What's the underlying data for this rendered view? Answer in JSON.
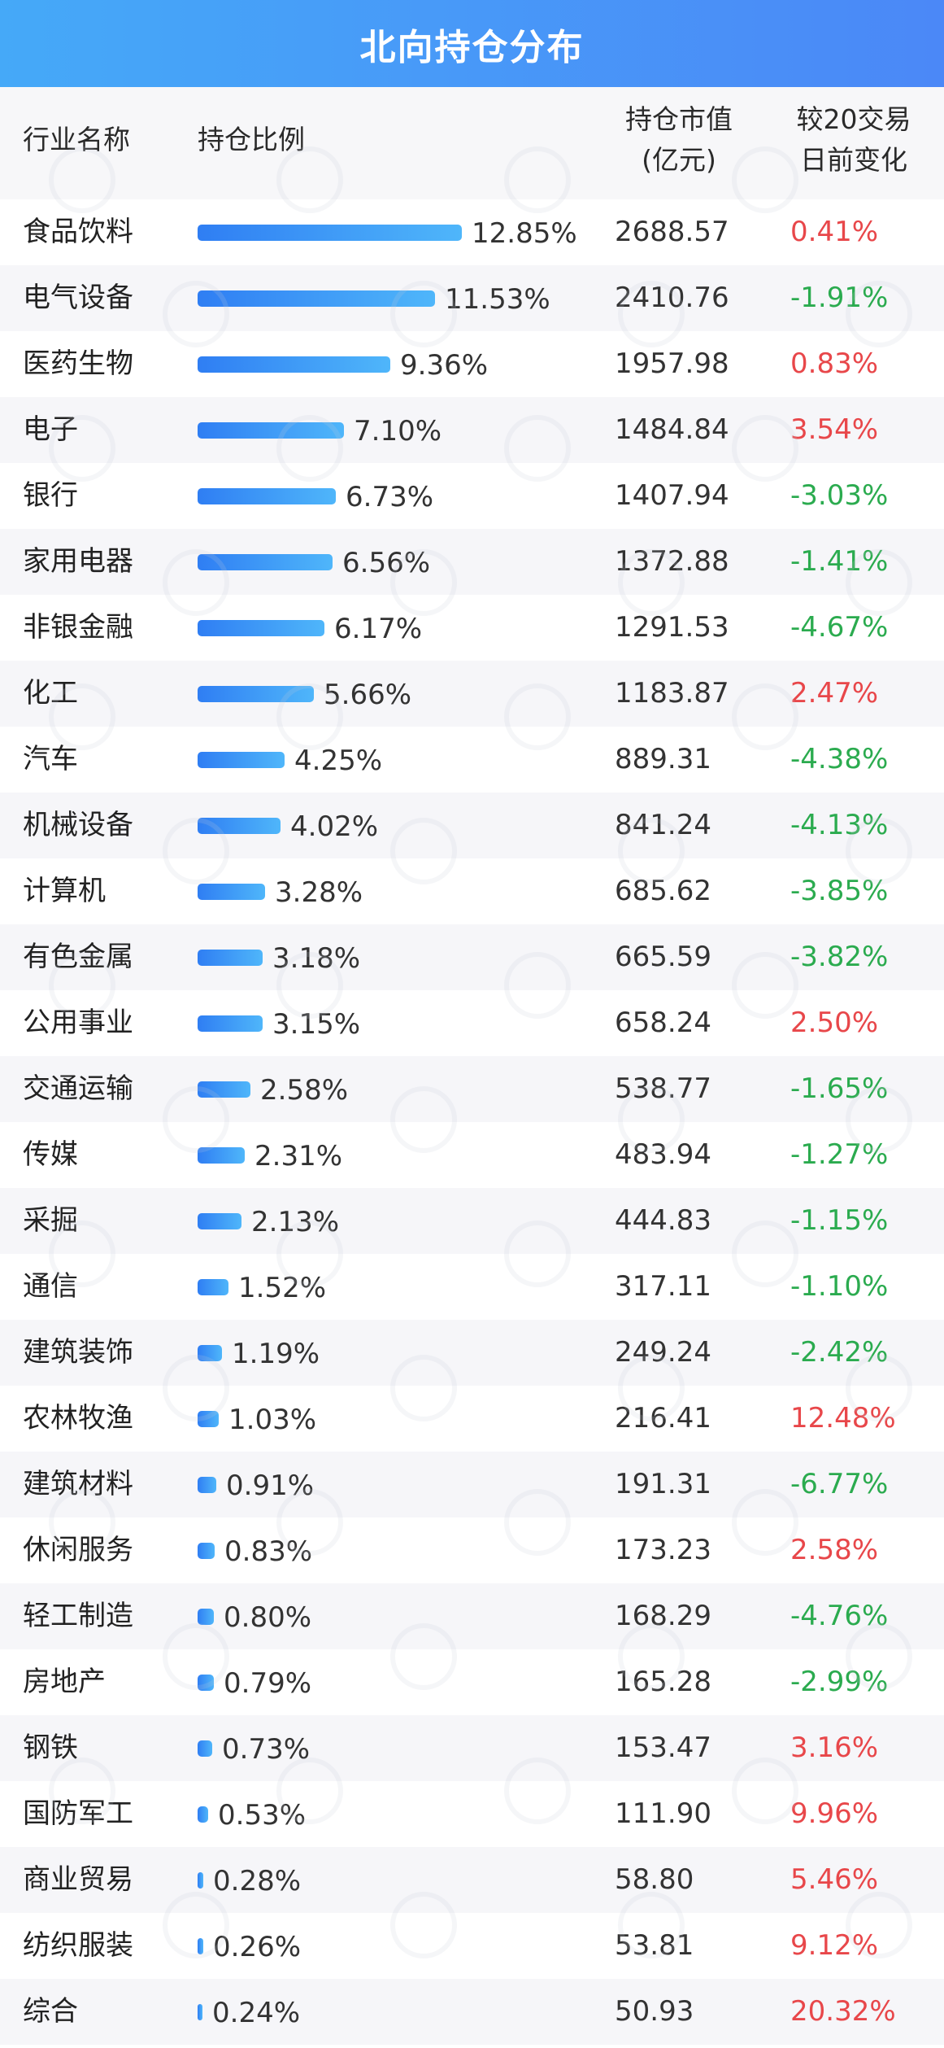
{
  "header": {
    "title": "北向持仓分布"
  },
  "columns": {
    "name": "行业名称",
    "ratio": "持仓比例",
    "value_line1": "持仓市值",
    "value_line2": "(亿元)",
    "change_line1": "较20交易",
    "change_line2": "日前变化"
  },
  "colors": {
    "header_start": "#45a9f8",
    "header_end": "#4b88f7",
    "bar_start": "#2f7ef3",
    "bar_end": "#4fb6fa",
    "positive": "#e8474a",
    "negative": "#2bab4f"
  },
  "chart_data": {
    "type": "table",
    "max_ratio": 12.85,
    "rows": [
      {
        "name": "食品饮料",
        "ratio": 12.85,
        "ratio_label": "12.85%",
        "value": "2688.57",
        "change": "0.41%",
        "dir": "up"
      },
      {
        "name": "电气设备",
        "ratio": 11.53,
        "ratio_label": "11.53%",
        "value": "2410.76",
        "change": "-1.91%",
        "dir": "down"
      },
      {
        "name": "医药生物",
        "ratio": 9.36,
        "ratio_label": "9.36%",
        "value": "1957.98",
        "change": "0.83%",
        "dir": "up"
      },
      {
        "name": "电子",
        "ratio": 7.1,
        "ratio_label": "7.10%",
        "value": "1484.84",
        "change": "3.54%",
        "dir": "up"
      },
      {
        "name": "银行",
        "ratio": 6.73,
        "ratio_label": "6.73%",
        "value": "1407.94",
        "change": "-3.03%",
        "dir": "down"
      },
      {
        "name": "家用电器",
        "ratio": 6.56,
        "ratio_label": "6.56%",
        "value": "1372.88",
        "change": "-1.41%",
        "dir": "down"
      },
      {
        "name": "非银金融",
        "ratio": 6.17,
        "ratio_label": "6.17%",
        "value": "1291.53",
        "change": "-4.67%",
        "dir": "down"
      },
      {
        "name": "化工",
        "ratio": 5.66,
        "ratio_label": "5.66%",
        "value": "1183.87",
        "change": "2.47%",
        "dir": "up"
      },
      {
        "name": "汽车",
        "ratio": 4.25,
        "ratio_label": "4.25%",
        "value": "889.31",
        "change": "-4.38%",
        "dir": "down"
      },
      {
        "name": "机械设备",
        "ratio": 4.02,
        "ratio_label": "4.02%",
        "value": "841.24",
        "change": "-4.13%",
        "dir": "down"
      },
      {
        "name": "计算机",
        "ratio": 3.28,
        "ratio_label": "3.28%",
        "value": "685.62",
        "change": "-3.85%",
        "dir": "down"
      },
      {
        "name": "有色金属",
        "ratio": 3.18,
        "ratio_label": "3.18%",
        "value": "665.59",
        "change": "-3.82%",
        "dir": "down"
      },
      {
        "name": "公用事业",
        "ratio": 3.15,
        "ratio_label": "3.15%",
        "value": "658.24",
        "change": "2.50%",
        "dir": "up"
      },
      {
        "name": "交通运输",
        "ratio": 2.58,
        "ratio_label": "2.58%",
        "value": "538.77",
        "change": "-1.65%",
        "dir": "down"
      },
      {
        "name": "传媒",
        "ratio": 2.31,
        "ratio_label": "2.31%",
        "value": "483.94",
        "change": "-1.27%",
        "dir": "down"
      },
      {
        "name": "采掘",
        "ratio": 2.13,
        "ratio_label": "2.13%",
        "value": "444.83",
        "change": "-1.15%",
        "dir": "down"
      },
      {
        "name": "通信",
        "ratio": 1.52,
        "ratio_label": "1.52%",
        "value": "317.11",
        "change": "-1.10%",
        "dir": "down"
      },
      {
        "name": "建筑装饰",
        "ratio": 1.19,
        "ratio_label": "1.19%",
        "value": "249.24",
        "change": "-2.42%",
        "dir": "down"
      },
      {
        "name": "农林牧渔",
        "ratio": 1.03,
        "ratio_label": "1.03%",
        "value": "216.41",
        "change": "12.48%",
        "dir": "up"
      },
      {
        "name": "建筑材料",
        "ratio": 0.91,
        "ratio_label": "0.91%",
        "value": "191.31",
        "change": "-6.77%",
        "dir": "down"
      },
      {
        "name": "休闲服务",
        "ratio": 0.83,
        "ratio_label": "0.83%",
        "value": "173.23",
        "change": "2.58%",
        "dir": "up"
      },
      {
        "name": "轻工制造",
        "ratio": 0.8,
        "ratio_label": "0.80%",
        "value": "168.29",
        "change": "-4.76%",
        "dir": "down"
      },
      {
        "name": "房地产",
        "ratio": 0.79,
        "ratio_label": "0.79%",
        "value": "165.28",
        "change": "-2.99%",
        "dir": "down"
      },
      {
        "name": "钢铁",
        "ratio": 0.73,
        "ratio_label": "0.73%",
        "value": "153.47",
        "change": "3.16%",
        "dir": "up"
      },
      {
        "name": "国防军工",
        "ratio": 0.53,
        "ratio_label": "0.53%",
        "value": "111.90",
        "change": "9.96%",
        "dir": "up"
      },
      {
        "name": "商业贸易",
        "ratio": 0.28,
        "ratio_label": "0.28%",
        "value": "58.80",
        "change": "5.46%",
        "dir": "up"
      },
      {
        "name": "纺织服装",
        "ratio": 0.26,
        "ratio_label": "0.26%",
        "value": "53.81",
        "change": "9.12%",
        "dir": "up"
      },
      {
        "name": "综合",
        "ratio": 0.24,
        "ratio_label": "0.24%",
        "value": "50.93",
        "change": "20.32%",
        "dir": "up"
      }
    ]
  }
}
